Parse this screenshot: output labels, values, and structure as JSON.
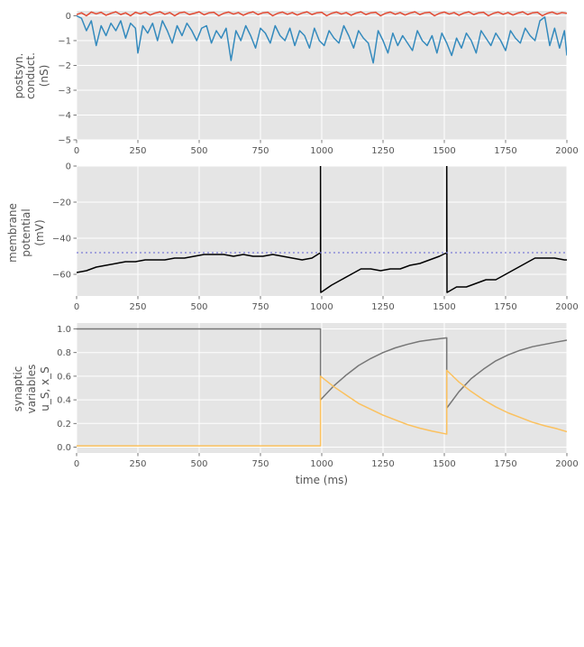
{
  "chart_data": [
    {
      "type": "line",
      "ylabel_lines": [
        "postsyn.",
        "conduct.",
        "(nS)"
      ],
      "xlim": [
        0,
        2000
      ],
      "ylim": [
        -5,
        0.2
      ],
      "xticks": [
        0,
        250,
        500,
        750,
        1000,
        1250,
        1500,
        1750,
        2000
      ],
      "xtick_labels": [
        "0",
        "250",
        "500",
        "750",
        "1000",
        "1250",
        "1500",
        "1750",
        "2000"
      ],
      "yticks": [
        -5,
        -4,
        -3,
        -2,
        -1,
        0
      ],
      "ytick_labels": [
        "−5",
        "−4",
        "−3",
        "−2",
        "−1",
        "0"
      ],
      "grid": true,
      "series": [
        {
          "color": "#348abd",
          "x": [
            0,
            20,
            40,
            60,
            80,
            100,
            120,
            140,
            160,
            180,
            200,
            220,
            240,
            250,
            270,
            290,
            310,
            330,
            350,
            370,
            390,
            410,
            430,
            450,
            470,
            490,
            510,
            530,
            550,
            570,
            590,
            610,
            630,
            650,
            670,
            690,
            710,
            730,
            750,
            770,
            790,
            810,
            830,
            850,
            870,
            890,
            910,
            930,
            950,
            970,
            990,
            1010,
            1030,
            1050,
            1070,
            1090,
            1110,
            1130,
            1150,
            1170,
            1190,
            1210,
            1230,
            1250,
            1270,
            1290,
            1310,
            1330,
            1350,
            1370,
            1390,
            1410,
            1430,
            1450,
            1470,
            1490,
            1510,
            1530,
            1550,
            1570,
            1590,
            1610,
            1630,
            1650,
            1670,
            1690,
            1710,
            1730,
            1750,
            1770,
            1790,
            1810,
            1830,
            1850,
            1870,
            1890,
            1910,
            1930,
            1950,
            1970,
            1990,
            2000
          ],
          "y": [
            0,
            -0.1,
            -0.6,
            -0.2,
            -1.2,
            -0.4,
            -0.8,
            -0.3,
            -0.6,
            -0.2,
            -0.9,
            -0.3,
            -0.5,
            -1.5,
            -0.4,
            -0.7,
            -0.3,
            -1.0,
            -0.2,
            -0.6,
            -1.1,
            -0.4,
            -0.8,
            -0.3,
            -0.6,
            -1.0,
            -0.5,
            -0.4,
            -1.1,
            -0.6,
            -0.9,
            -0.5,
            -1.8,
            -0.6,
            -1.0,
            -0.4,
            -0.8,
            -1.3,
            -0.5,
            -0.7,
            -1.1,
            -0.4,
            -0.8,
            -1.0,
            -0.5,
            -1.2,
            -0.6,
            -0.8,
            -1.3,
            -0.5,
            -1.0,
            -1.2,
            -0.6,
            -0.9,
            -1.1,
            -0.4,
            -0.8,
            -1.3,
            -0.6,
            -0.9,
            -1.1,
            -1.9,
            -0.6,
            -1.0,
            -1.5,
            -0.7,
            -1.2,
            -0.8,
            -1.1,
            -1.4,
            -0.6,
            -1.0,
            -1.2,
            -0.8,
            -1.5,
            -0.7,
            -1.1,
            -1.6,
            -0.9,
            -1.3,
            -0.7,
            -1.0,
            -1.5,
            -0.6,
            -0.9,
            -1.2,
            -0.7,
            -1.0,
            -1.4,
            -0.6,
            -0.9,
            -1.1,
            -0.5,
            -0.8,
            -1.0,
            -0.2,
            -0.05,
            -1.2,
            -0.5,
            -1.3,
            -0.6,
            -1.6
          ]
        },
        {
          "color": "#e24a33",
          "x": [
            0,
            20,
            40,
            60,
            80,
            100,
            120,
            140,
            160,
            180,
            200,
            220,
            240,
            260,
            280,
            300,
            320,
            340,
            360,
            380,
            400,
            420,
            440,
            460,
            480,
            500,
            520,
            540,
            560,
            580,
            600,
            620,
            640,
            660,
            680,
            700,
            720,
            740,
            760,
            780,
            800,
            820,
            840,
            860,
            880,
            900,
            920,
            940,
            960,
            980,
            1000,
            1020,
            1040,
            1060,
            1080,
            1100,
            1120,
            1140,
            1160,
            1180,
            1200,
            1220,
            1240,
            1260,
            1280,
            1300,
            1320,
            1340,
            1360,
            1380,
            1400,
            1420,
            1440,
            1460,
            1480,
            1500,
            1520,
            1540,
            1560,
            1580,
            1600,
            1620,
            1640,
            1660,
            1680,
            1700,
            1720,
            1740,
            1760,
            1780,
            1800,
            1820,
            1840,
            1860,
            1880,
            1900,
            1920,
            1940,
            1960,
            1980,
            2000
          ],
          "y": [
            0.05,
            0.12,
            0.0,
            0.15,
            0.08,
            0.14,
            0.02,
            0.1,
            0.16,
            0.05,
            0.12,
            0.0,
            0.14,
            0.08,
            0.15,
            0.03,
            0.11,
            0.16,
            0.06,
            0.13,
            0.0,
            0.12,
            0.15,
            0.05,
            0.1,
            0.16,
            0.04,
            0.12,
            0.14,
            0.0,
            0.1,
            0.15,
            0.07,
            0.13,
            0.02,
            0.11,
            0.16,
            0.05,
            0.12,
            0.14,
            0.0,
            0.1,
            0.15,
            0.06,
            0.13,
            0.03,
            0.11,
            0.16,
            0.05,
            0.12,
            0.14,
            0.0,
            0.1,
            0.15,
            0.07,
            0.13,
            0.02,
            0.11,
            0.16,
            0.05,
            0.12,
            0.14,
            0.0,
            0.1,
            0.15,
            0.06,
            0.13,
            0.03,
            0.11,
            0.16,
            0.05,
            0.12,
            0.14,
            0.0,
            0.1,
            0.15,
            0.07,
            0.13,
            0.02,
            0.11,
            0.16,
            0.05,
            0.12,
            0.14,
            0.0,
            0.1,
            0.15,
            0.06,
            0.13,
            0.03,
            0.11,
            0.16,
            0.05,
            0.12,
            0.14,
            0.0,
            0.1,
            0.15,
            0.07,
            0.13,
            0.1
          ]
        }
      ]
    },
    {
      "type": "line",
      "ylabel_lines": [
        "membrane",
        "potential",
        "(mV)"
      ],
      "xlim": [
        0,
        2000
      ],
      "ylim": [
        -72,
        0
      ],
      "xticks": [
        0,
        250,
        500,
        750,
        1000,
        1250,
        1500,
        1750,
        2000
      ],
      "xtick_labels": [
        "0",
        "250",
        "500",
        "750",
        "1000",
        "1250",
        "1500",
        "1750",
        "2000"
      ],
      "yticks": [
        -60,
        -40,
        -20,
        0
      ],
      "ytick_labels": [
        "−60",
        "−40",
        "−20",
        "0"
      ],
      "grid": true,
      "series": [
        {
          "color": "#000000",
          "x": [
            0,
            40,
            80,
            120,
            160,
            200,
            240,
            280,
            320,
            360,
            400,
            440,
            480,
            520,
            560,
            600,
            640,
            680,
            720,
            760,
            800,
            840,
            880,
            920,
            960,
            995,
            995,
            996,
            997,
            1040,
            1080,
            1120,
            1160,
            1200,
            1240,
            1280,
            1320,
            1360,
            1400,
            1440,
            1480,
            1510,
            1510,
            1511,
            1512,
            1550,
            1590,
            1630,
            1670,
            1710,
            1750,
            1790,
            1830,
            1870,
            1910,
            1950,
            1990,
            2000
          ],
          "y": [
            -59,
            -58,
            -56,
            -55,
            -54,
            -53,
            -53,
            -52,
            -52,
            -52,
            -51,
            -51,
            -50,
            -49,
            -49,
            -49,
            -50,
            -49,
            -50,
            -50,
            -49,
            -50,
            -51,
            -52,
            -51,
            -48,
            0,
            -70,
            -70,
            -66,
            -63,
            -60,
            -57,
            -57,
            -58,
            -57,
            -57,
            -55,
            -54,
            -52,
            -50,
            -48,
            0,
            -70,
            -70,
            -67,
            -67,
            -65,
            -63,
            -63,
            -60,
            -57,
            -54,
            -51,
            -51,
            -51,
            -52,
            -52
          ]
        },
        {
          "color": "#7b7bd8",
          "dashed": true,
          "x": [
            0,
            2000
          ],
          "y": [
            -48,
            -48
          ]
        }
      ]
    },
    {
      "type": "line",
      "ylabel_lines": [
        "synaptic",
        "variables",
        "u_S, x_S"
      ],
      "xlabel": "time (ms)",
      "xlim": [
        0,
        2000
      ],
      "ylim": [
        -0.05,
        1.05
      ],
      "xticks": [
        0,
        250,
        500,
        750,
        1000,
        1250,
        1500,
        1750,
        2000
      ],
      "xtick_labels": [
        "0",
        "250",
        "500",
        "750",
        "1000",
        "1250",
        "1500",
        "1750",
        "2000"
      ],
      "yticks": [
        0.0,
        0.2,
        0.4,
        0.6,
        0.8,
        1.0
      ],
      "ytick_labels": [
        "0.0",
        "0.2",
        "0.4",
        "0.6",
        "0.8",
        "1.0"
      ],
      "grid": true,
      "series": [
        {
          "color": "#777777",
          "x": [
            0,
            995,
            995,
            1050,
            1100,
            1150,
            1200,
            1250,
            1300,
            1350,
            1400,
            1450,
            1510,
            1510,
            1560,
            1610,
            1660,
            1710,
            1760,
            1810,
            1860,
            1910,
            1960,
            2000
          ],
          "y": [
            1.0,
            1.0,
            0.4,
            0.52,
            0.61,
            0.69,
            0.75,
            0.8,
            0.84,
            0.87,
            0.895,
            0.91,
            0.925,
            0.33,
            0.47,
            0.58,
            0.66,
            0.73,
            0.78,
            0.82,
            0.85,
            0.87,
            0.89,
            0.905
          ]
        },
        {
          "color": "#fbc15e",
          "x": [
            0,
            995,
            995,
            1050,
            1100,
            1150,
            1200,
            1250,
            1300,
            1350,
            1400,
            1450,
            1510,
            1510,
            1560,
            1610,
            1660,
            1710,
            1760,
            1810,
            1860,
            1910,
            1960,
            2000
          ],
          "y": [
            0.01,
            0.01,
            0.6,
            0.51,
            0.44,
            0.37,
            0.32,
            0.27,
            0.23,
            0.19,
            0.16,
            0.135,
            0.11,
            0.65,
            0.55,
            0.47,
            0.4,
            0.34,
            0.29,
            0.25,
            0.21,
            0.18,
            0.155,
            0.13
          ]
        }
      ]
    }
  ]
}
